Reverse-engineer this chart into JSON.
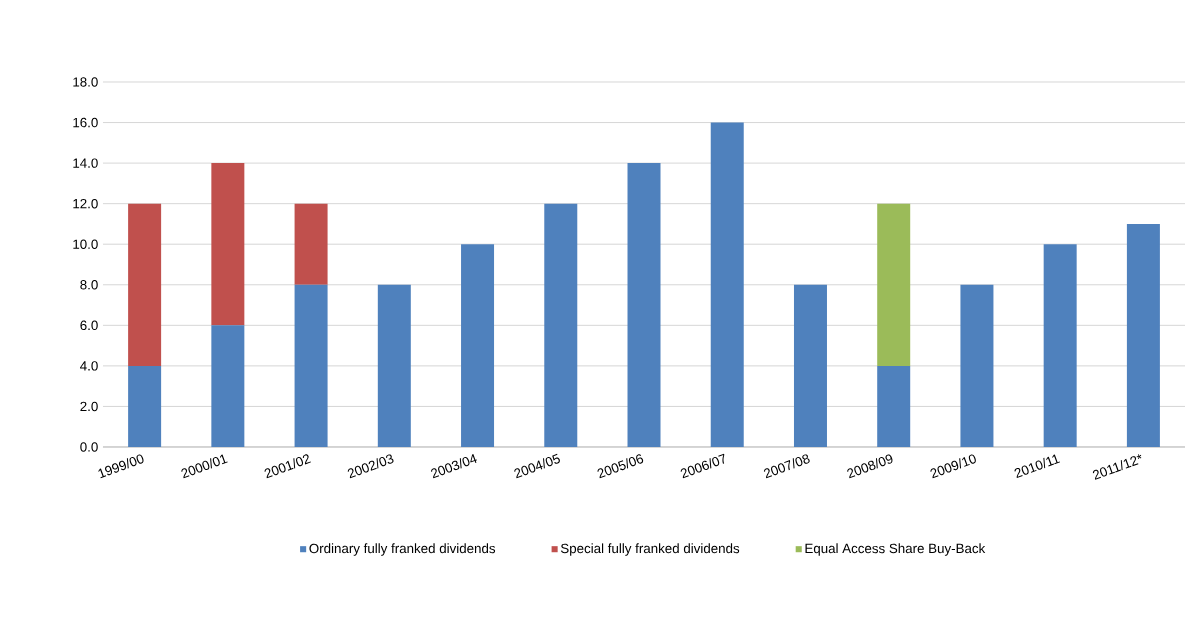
{
  "chart_data": {
    "type": "bar",
    "stacked": true,
    "categories": [
      "1999/00",
      "2000/01",
      "2001/02",
      "2002/03",
      "2003/04",
      "2004/05",
      "2005/06",
      "2006/07",
      "2007/08",
      "2008/09",
      "2009/10",
      "2010/11",
      "2011/12*"
    ],
    "series": [
      {
        "name": "Ordinary fully franked dividends",
        "color": "#4f81bd",
        "values": [
          4,
          6,
          8,
          8,
          10,
          12,
          14,
          16,
          8,
          4,
          8,
          10,
          11
        ]
      },
      {
        "name": "Special fully franked dividends",
        "color": "#c0504d",
        "values": [
          8,
          8,
          4,
          null,
          null,
          null,
          null,
          null,
          null,
          null,
          null,
          null,
          null
        ]
      },
      {
        "name": "Equal Access Share Buy-Back",
        "color": "#9bbb59",
        "values": [
          null,
          null,
          null,
          null,
          null,
          null,
          null,
          null,
          null,
          8,
          null,
          null,
          null
        ]
      }
    ],
    "ylim": [
      0,
      18
    ],
    "yticks": [
      {
        "value": 0,
        "label": "0.0"
      },
      {
        "value": 2,
        "label": "2.0"
      },
      {
        "value": 4,
        "label": "4.0"
      },
      {
        "value": 6,
        "label": "6.0"
      },
      {
        "value": 8,
        "label": "8.0"
      },
      {
        "value": 10,
        "label": "10.0"
      },
      {
        "value": 12,
        "label": "12.0"
      },
      {
        "value": 14,
        "label": "14.0"
      },
      {
        "value": 16,
        "label": "16.0"
      },
      {
        "value": 18,
        "label": "18.0"
      }
    ],
    "grid": "y",
    "legend": "bottom"
  }
}
